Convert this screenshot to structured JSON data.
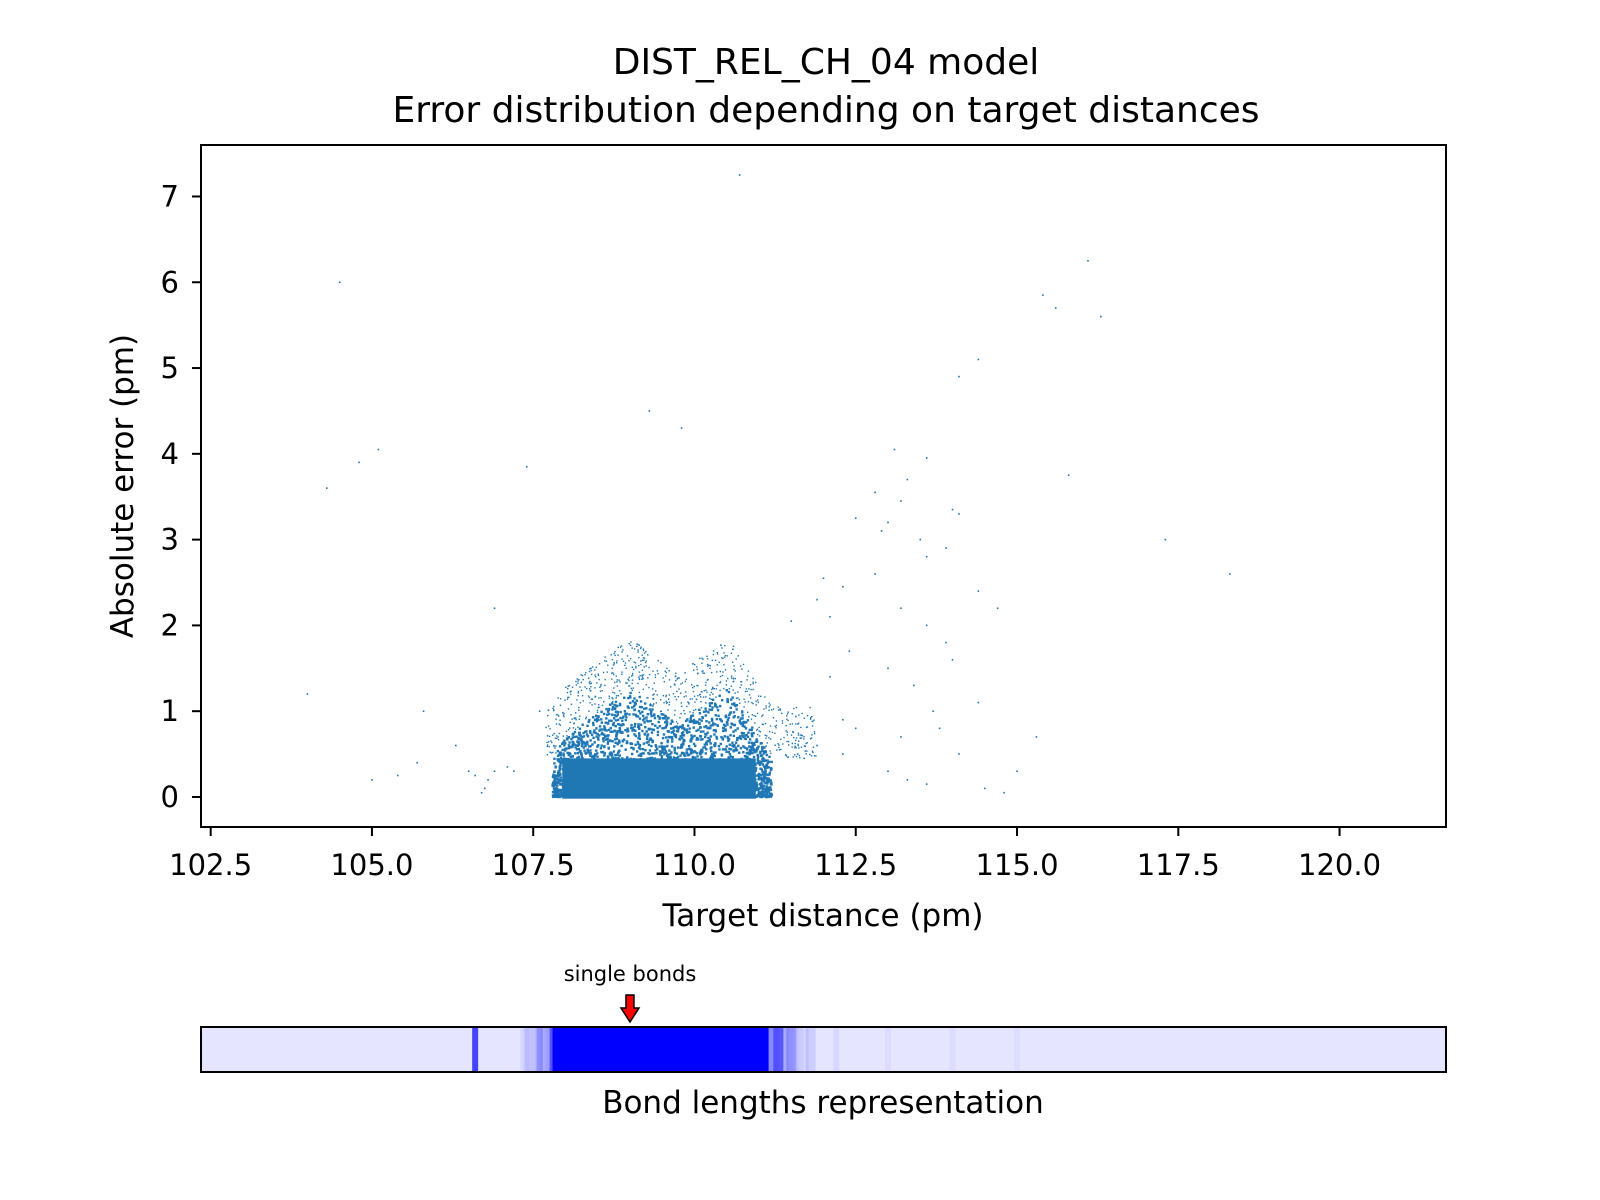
{
  "chart_data": {
    "type": "scatter",
    "title": "DIST_REL_CH_04 model",
    "subtitle": "Error distribution depending on target distances",
    "xlabel": "Target distance (pm)",
    "ylabel": "Absolute error (pm)",
    "xlim": [
      102.35,
      121.65
    ],
    "ylim": [
      -0.35,
      7.6
    ],
    "xticks": [
      "102.5",
      "105.0",
      "107.5",
      "110.0",
      "112.5",
      "115.0",
      "117.5",
      "120.0"
    ],
    "xtick_values": [
      102.5,
      105.0,
      107.5,
      110.0,
      112.5,
      115.0,
      117.5,
      120.0
    ],
    "yticks": [
      "0",
      "1",
      "2",
      "3",
      "4",
      "5",
      "6",
      "7"
    ],
    "ytick_values": [
      0,
      1,
      2,
      3,
      4,
      5,
      6,
      7
    ],
    "grid": false,
    "point_color": "#1f77b4",
    "dense_region": {
      "x_range": [
        107.8,
        111.2
      ],
      "peak_error": 1.5,
      "shape": "two V-shaped lobes centred near 109.0 and 110.5 pm"
    },
    "points": [
      [
        110.7,
        7.25
      ],
      [
        104.5,
        6.0
      ],
      [
        116.1,
        6.25
      ],
      [
        115.4,
        5.85
      ],
      [
        115.6,
        5.7
      ],
      [
        116.3,
        5.6
      ],
      [
        114.4,
        5.1
      ],
      [
        114.1,
        4.9
      ],
      [
        109.3,
        4.5
      ],
      [
        109.8,
        4.3
      ],
      [
        105.1,
        4.05
      ],
      [
        104.8,
        3.9
      ],
      [
        107.4,
        3.85
      ],
      [
        113.1,
        4.05
      ],
      [
        113.6,
        3.95
      ],
      [
        115.8,
        3.75
      ],
      [
        113.3,
        3.7
      ],
      [
        104.3,
        3.6
      ],
      [
        112.8,
        3.55
      ],
      [
        113.2,
        3.45
      ],
      [
        114.0,
        3.35
      ],
      [
        114.1,
        3.3
      ],
      [
        112.5,
        3.25
      ],
      [
        113.0,
        3.2
      ],
      [
        112.9,
        3.1
      ],
      [
        113.5,
        3.0
      ],
      [
        113.9,
        2.9
      ],
      [
        117.3,
        3.0
      ],
      [
        113.6,
        2.8
      ],
      [
        118.3,
        2.6
      ],
      [
        112.8,
        2.6
      ],
      [
        112.0,
        2.55
      ],
      [
        112.3,
        2.45
      ],
      [
        114.4,
        2.4
      ],
      [
        111.9,
        2.3
      ],
      [
        114.7,
        2.2
      ],
      [
        113.2,
        2.2
      ],
      [
        112.1,
        2.1
      ],
      [
        106.9,
        2.2
      ],
      [
        111.5,
        2.05
      ],
      [
        113.6,
        2.0
      ],
      [
        113.9,
        1.8
      ],
      [
        112.4,
        1.7
      ],
      [
        114.0,
        1.6
      ],
      [
        113.0,
        1.5
      ],
      [
        112.1,
        1.4
      ],
      [
        113.4,
        1.3
      ],
      [
        104.0,
        1.2
      ],
      [
        114.4,
        1.1
      ],
      [
        113.7,
        1.0
      ],
      [
        113.8,
        0.8
      ],
      [
        112.3,
        0.9
      ],
      [
        112.5,
        0.8
      ],
      [
        113.2,
        0.7
      ],
      [
        115.3,
        0.7
      ],
      [
        111.9,
        0.6
      ],
      [
        112.3,
        0.5
      ],
      [
        114.1,
        0.5
      ],
      [
        115.0,
        0.3
      ],
      [
        113.0,
        0.3
      ],
      [
        113.3,
        0.2
      ],
      [
        113.6,
        0.15
      ],
      [
        114.5,
        0.1
      ],
      [
        114.8,
        0.05
      ],
      [
        105.0,
        0.2
      ],
      [
        105.4,
        0.25
      ],
      [
        105.7,
        0.4
      ],
      [
        107.1,
        0.35
      ],
      [
        106.3,
        0.6
      ],
      [
        105.8,
        1.0
      ],
      [
        107.6,
        1.0
      ],
      [
        107.2,
        0.3
      ],
      [
        106.6,
        0.25
      ],
      [
        106.5,
        0.3
      ],
      [
        106.7,
        0.05
      ],
      [
        106.75,
        0.1
      ],
      [
        106.8,
        0.2
      ],
      [
        106.9,
        0.3
      ],
      [
        111.6,
        0.5
      ],
      [
        111.7,
        0.45
      ]
    ]
  },
  "bond_panel": {
    "caption": "Bond lengths representation",
    "annotation": "single bonds",
    "annotation_x": 109.0,
    "arrow_color": "#ff0000",
    "base_color": "#e5e5ff",
    "band_color": "#0000ff",
    "bands": [
      {
        "x": 106.6,
        "strength": 0.7
      },
      {
        "x": 107.4,
        "strength": 0.08
      },
      {
        "x": 107.6,
        "strength": 0.2
      },
      {
        "x": 107.8,
        "strength": 0.45
      },
      {
        "x": 109.5,
        "strength": 1.0
      },
      {
        "x": 111.3,
        "strength": 0.45
      },
      {
        "x": 111.5,
        "strength": 0.2
      },
      {
        "x": 111.8,
        "strength": 0.1
      },
      {
        "x": 112.2,
        "strength": 0.06
      },
      {
        "x": 113.0,
        "strength": 0.04
      },
      {
        "x": 114.0,
        "strength": 0.04
      },
      {
        "x": 115.0,
        "strength": 0.03
      }
    ]
  }
}
